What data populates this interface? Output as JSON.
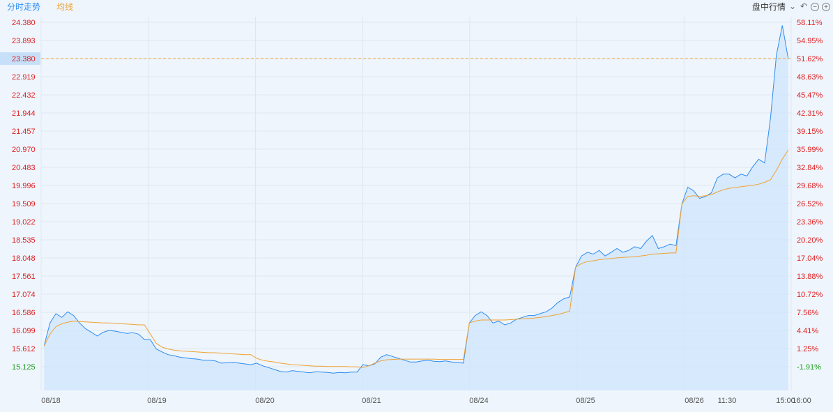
{
  "toolbar": {
    "tab_intraday": "分时走势",
    "tab_avg": "均线",
    "market_label": "盘中行情",
    "icons": [
      "chevron-down-icon",
      "undo-icon",
      "zoom-out-icon",
      "zoom-in-icon"
    ]
  },
  "chart_data": {
    "type": "line",
    "title": "",
    "y_left_ticks": [
      "24.380",
      "23.893",
      "23.380",
      "22.919",
      "22.432",
      "21.944",
      "21.457",
      "20.970",
      "20.483",
      "19.996",
      "19.509",
      "19.022",
      "18.535",
      "18.048",
      "17.561",
      "17.074",
      "16.586",
      "16.099",
      "15.612",
      "15.125"
    ],
    "y_right_ticks": [
      "58.11%",
      "54.95%",
      "51.62%",
      "48.63%",
      "45.47%",
      "42.31%",
      "39.15%",
      "35.99%",
      "32.84%",
      "29.68%",
      "26.52%",
      "23.36%",
      "20.20%",
      "17.04%",
      "13.88%",
      "10.72%",
      "7.56%",
      "4.41%",
      "1.25%",
      "-1.91%"
    ],
    "highlight_tick_index": 2,
    "prev_close": 15.42,
    "last_price": 23.38,
    "ylim": [
      14.9,
      24.6
    ],
    "x_labels": [
      "08/18",
      "08/19",
      "08/20",
      "08/21",
      "08/24",
      "08/25",
      "08/26",
      "11:30",
      "15:00",
      "16:00"
    ],
    "days": [
      "08/18",
      "08/19",
      "08/20",
      "08/21",
      "08/24",
      "08/25",
      "08/26"
    ],
    "colors": {
      "price_line": "#2d8cf0",
      "avg_line": "#f0a234",
      "up": "#e02020",
      "down": "#1a9f1a",
      "fill": "#cfe4fb",
      "grid": "#dde6f0"
    },
    "series": [
      {
        "name": "分时走势",
        "values": [
          15.68,
          16.3,
          16.55,
          16.45,
          16.6,
          16.5,
          16.3,
          16.15,
          16.05,
          15.95,
          16.05,
          16.1,
          16.08,
          16.05,
          16.02,
          16.04,
          16.0,
          15.85,
          15.85,
          15.6,
          15.52,
          15.45,
          15.42,
          15.38,
          15.36,
          15.34,
          15.33,
          15.3,
          15.3,
          15.28,
          15.22,
          15.23,
          15.24,
          15.22,
          15.2,
          15.18,
          15.22,
          15.15,
          15.1,
          15.05,
          15.0,
          14.98,
          15.02,
          15.0,
          14.98,
          14.96,
          14.99,
          14.98,
          14.97,
          14.95,
          14.97,
          14.96,
          14.98,
          14.98,
          15.18,
          15.15,
          15.2,
          15.38,
          15.45,
          15.4,
          15.35,
          15.3,
          15.25,
          15.25,
          15.28,
          15.3,
          15.27,
          15.26,
          15.28,
          15.25,
          15.24,
          15.22,
          16.3,
          16.5,
          16.6,
          16.5,
          16.3,
          16.35,
          16.25,
          16.3,
          16.4,
          16.45,
          16.5,
          16.5,
          16.55,
          16.6,
          16.7,
          16.85,
          16.95,
          17.0,
          17.8,
          18.1,
          18.2,
          18.15,
          18.25,
          18.1,
          18.2,
          18.3,
          18.2,
          18.25,
          18.35,
          18.3,
          18.5,
          18.65,
          18.3,
          18.35,
          18.42,
          18.38,
          19.5,
          19.95,
          19.85,
          19.65,
          19.7,
          19.8,
          20.2,
          20.3,
          20.3,
          20.2,
          20.3,
          20.25,
          20.5,
          20.7,
          20.6,
          21.8,
          23.5,
          24.3,
          23.4
        ]
      },
      {
        "name": "均线",
        "values": [
          15.68,
          16.0,
          16.2,
          16.28,
          16.32,
          16.35,
          16.34,
          16.33,
          16.32,
          16.31,
          16.3,
          16.3,
          16.29,
          16.28,
          16.27,
          16.26,
          16.25,
          16.25,
          16.0,
          15.75,
          15.65,
          15.6,
          15.57,
          15.55,
          15.54,
          15.53,
          15.52,
          15.51,
          15.5,
          15.5,
          15.49,
          15.48,
          15.47,
          15.46,
          15.45,
          15.45,
          15.35,
          15.3,
          15.27,
          15.25,
          15.22,
          15.2,
          15.18,
          15.17,
          15.16,
          15.15,
          15.14,
          15.14,
          15.13,
          15.13,
          15.13,
          15.13,
          15.12,
          15.12,
          15.1,
          15.15,
          15.22,
          15.28,
          15.31,
          15.32,
          15.33,
          15.33,
          15.33,
          15.33,
          15.33,
          15.33,
          15.33,
          15.32,
          15.32,
          15.32,
          15.32,
          15.32,
          16.3,
          16.35,
          16.38,
          16.38,
          16.38,
          16.38,
          16.38,
          16.39,
          16.4,
          16.41,
          16.42,
          16.43,
          16.45,
          16.47,
          16.5,
          16.53,
          16.57,
          16.62,
          17.8,
          17.9,
          17.95,
          17.97,
          18.0,
          18.02,
          18.03,
          18.05,
          18.06,
          18.07,
          18.08,
          18.1,
          18.12,
          18.15,
          18.16,
          18.17,
          18.18,
          18.18,
          19.5,
          19.7,
          19.72,
          19.7,
          19.72,
          19.75,
          19.82,
          19.88,
          19.92,
          19.94,
          19.96,
          19.98,
          20.0,
          20.03,
          20.08,
          20.15,
          20.4,
          20.7,
          20.95
        ]
      }
    ]
  }
}
